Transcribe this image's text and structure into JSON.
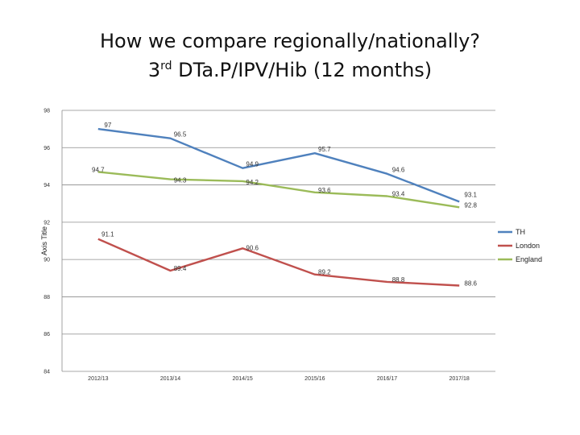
{
  "slide": {
    "title_line1": "How we compare regionally/nationally?",
    "title_line2_pre": "3",
    "title_line2_sup": "rd",
    "title_line2_post": " DTa.P/IPV/Hib (12 months)"
  },
  "chart_data": {
    "type": "line",
    "title": "",
    "xlabel": "",
    "ylabel": "Axis Title",
    "ylim": [
      84,
      98
    ],
    "yticks": [
      84,
      86,
      88,
      90,
      92,
      94,
      96,
      98
    ],
    "categories": [
      "2012/13",
      "2013/14",
      "2014/15",
      "2015/16",
      "2016/17",
      "2017/18"
    ],
    "legend_position": "right",
    "grid": true,
    "series": [
      {
        "name": "TH",
        "color": "#4F81BD",
        "values": [
          97,
          96.5,
          94.9,
          95.7,
          94.6,
          93.1
        ]
      },
      {
        "name": "London",
        "color": "#C0504D",
        "values": [
          91.1,
          89.4,
          90.6,
          89.2,
          88.8,
          88.6
        ]
      },
      {
        "name": "England",
        "color": "#9BBB59",
        "values": [
          94.7,
          94.3,
          94.2,
          93.6,
          93.4,
          92.8
        ]
      }
    ]
  }
}
